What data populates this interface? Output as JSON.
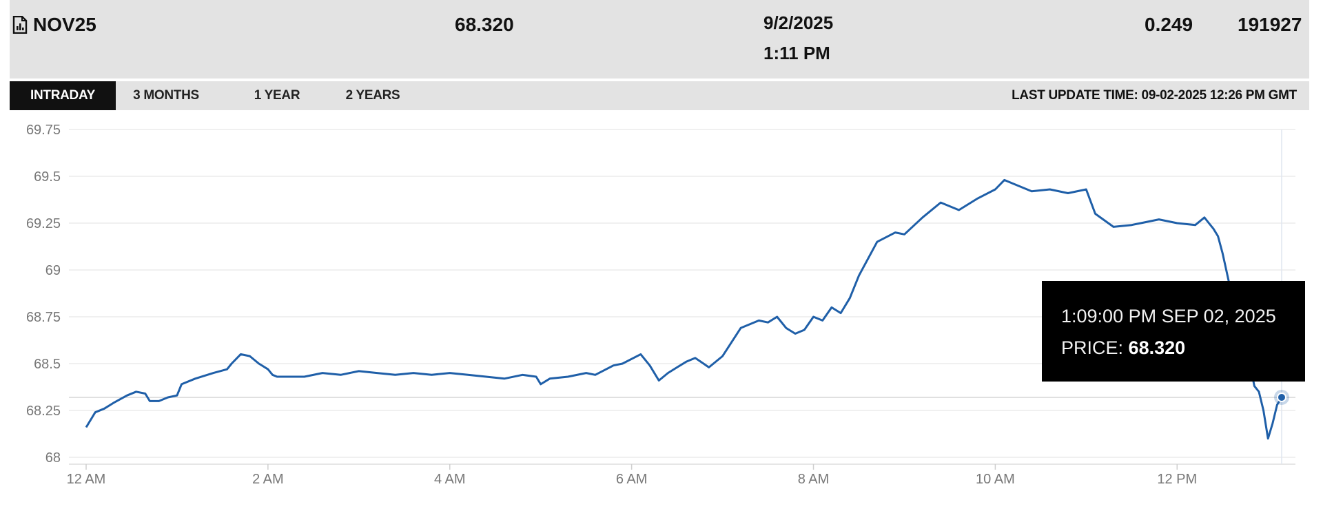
{
  "header": {
    "symbol_icon": "chart-document-icon",
    "symbol": "NOV25",
    "price": "68.320",
    "date": "9/2/2025",
    "time": "1:11 PM",
    "change": "0.249",
    "volume": "191927"
  },
  "tabs": [
    {
      "label": "INTRADAY",
      "active": true
    },
    {
      "label": "3 MONTHS",
      "active": false
    },
    {
      "label": "1 YEAR",
      "active": false
    },
    {
      "label": "2 YEARS",
      "active": false
    }
  ],
  "last_update": "LAST UPDATE TIME: 09-02-2025 12:26 PM GMT",
  "tooltip": {
    "time": "1:09:00 PM SEP 02, 2025",
    "price_label": "PRICE:",
    "price_value": "68.320"
  },
  "colors": {
    "line": "#1f5fa8",
    "header_bg": "#e3e3e3",
    "tab_active_bg": "#111111"
  },
  "chart_data": {
    "type": "line",
    "ylim": [
      68,
      69.75
    ],
    "y_ticks": [
      68,
      68.25,
      68.5,
      68.75,
      69,
      69.25,
      69.5,
      69.75
    ],
    "y_tick_labels": [
      "68",
      "68.25",
      "68.5",
      "68.75",
      "69",
      "69.25",
      "69.5",
      "69.75"
    ],
    "x_range_hours": [
      0,
      13.15
    ],
    "x_ticks": [
      0,
      2,
      4,
      6,
      8,
      10,
      12
    ],
    "x_tick_labels": [
      "12 AM",
      "2 AM",
      "4 AM",
      "6 AM",
      "8 AM",
      "10 AM",
      "12 PM"
    ],
    "grid": true,
    "highlight_point": {
      "x": 13.15,
      "y": 68.32
    },
    "series": [
      {
        "x": [
          0.0,
          0.05,
          0.1,
          0.2,
          0.3,
          0.45,
          0.55,
          0.65,
          0.7,
          0.8,
          0.9,
          1.0,
          1.05,
          1.2,
          1.4,
          1.55,
          1.6,
          1.7,
          1.8,
          1.9,
          2.0,
          2.05,
          2.1,
          2.2,
          2.4,
          2.6,
          2.8,
          3.0,
          3.2,
          3.4,
          3.6,
          3.8,
          4.0,
          4.2,
          4.4,
          4.6,
          4.8,
          4.95,
          5.0,
          5.1,
          5.3,
          5.5,
          5.6,
          5.8,
          5.9,
          6.1,
          6.2,
          6.3,
          6.4,
          6.5,
          6.6,
          6.7,
          6.85,
          7.0,
          7.2,
          7.4,
          7.5,
          7.6,
          7.7,
          7.8,
          7.9,
          8.0,
          8.1,
          8.2,
          8.3,
          8.4,
          8.5,
          8.7,
          8.9,
          9.0,
          9.2,
          9.4,
          9.6,
          9.8,
          10.0,
          10.1,
          10.2,
          10.4,
          10.6,
          10.8,
          11.0,
          11.1,
          11.3,
          11.5,
          11.8,
          12.0,
          12.2,
          12.3,
          12.35,
          12.4,
          12.45,
          12.5,
          12.6,
          12.7,
          12.8,
          12.85,
          12.9,
          12.95,
          13.0,
          13.05,
          13.1,
          13.15
        ],
        "values": [
          68.16,
          68.2,
          68.24,
          68.26,
          68.29,
          68.33,
          68.35,
          68.34,
          68.3,
          68.3,
          68.32,
          68.33,
          68.39,
          68.42,
          68.45,
          68.47,
          68.5,
          68.55,
          68.54,
          68.5,
          68.47,
          68.44,
          68.43,
          68.43,
          68.43,
          68.45,
          68.44,
          68.46,
          68.45,
          68.44,
          68.45,
          68.44,
          68.45,
          68.44,
          68.43,
          68.42,
          68.44,
          68.43,
          68.39,
          68.42,
          68.43,
          68.45,
          68.44,
          68.49,
          68.5,
          68.55,
          68.49,
          68.41,
          68.45,
          68.48,
          68.51,
          68.53,
          68.48,
          68.54,
          68.69,
          68.73,
          68.72,
          68.75,
          68.69,
          68.66,
          68.68,
          68.75,
          68.73,
          68.8,
          68.77,
          68.85,
          68.97,
          69.15,
          69.2,
          69.19,
          69.28,
          69.36,
          69.32,
          69.38,
          69.43,
          69.48,
          69.46,
          69.42,
          69.43,
          69.41,
          69.43,
          69.3,
          69.23,
          69.24,
          69.27,
          69.25,
          69.24,
          69.28,
          69.25,
          69.22,
          69.18,
          69.09,
          68.87,
          68.65,
          68.5,
          68.38,
          68.35,
          68.25,
          68.1,
          68.18,
          68.28,
          68.32
        ]
      }
    ]
  }
}
